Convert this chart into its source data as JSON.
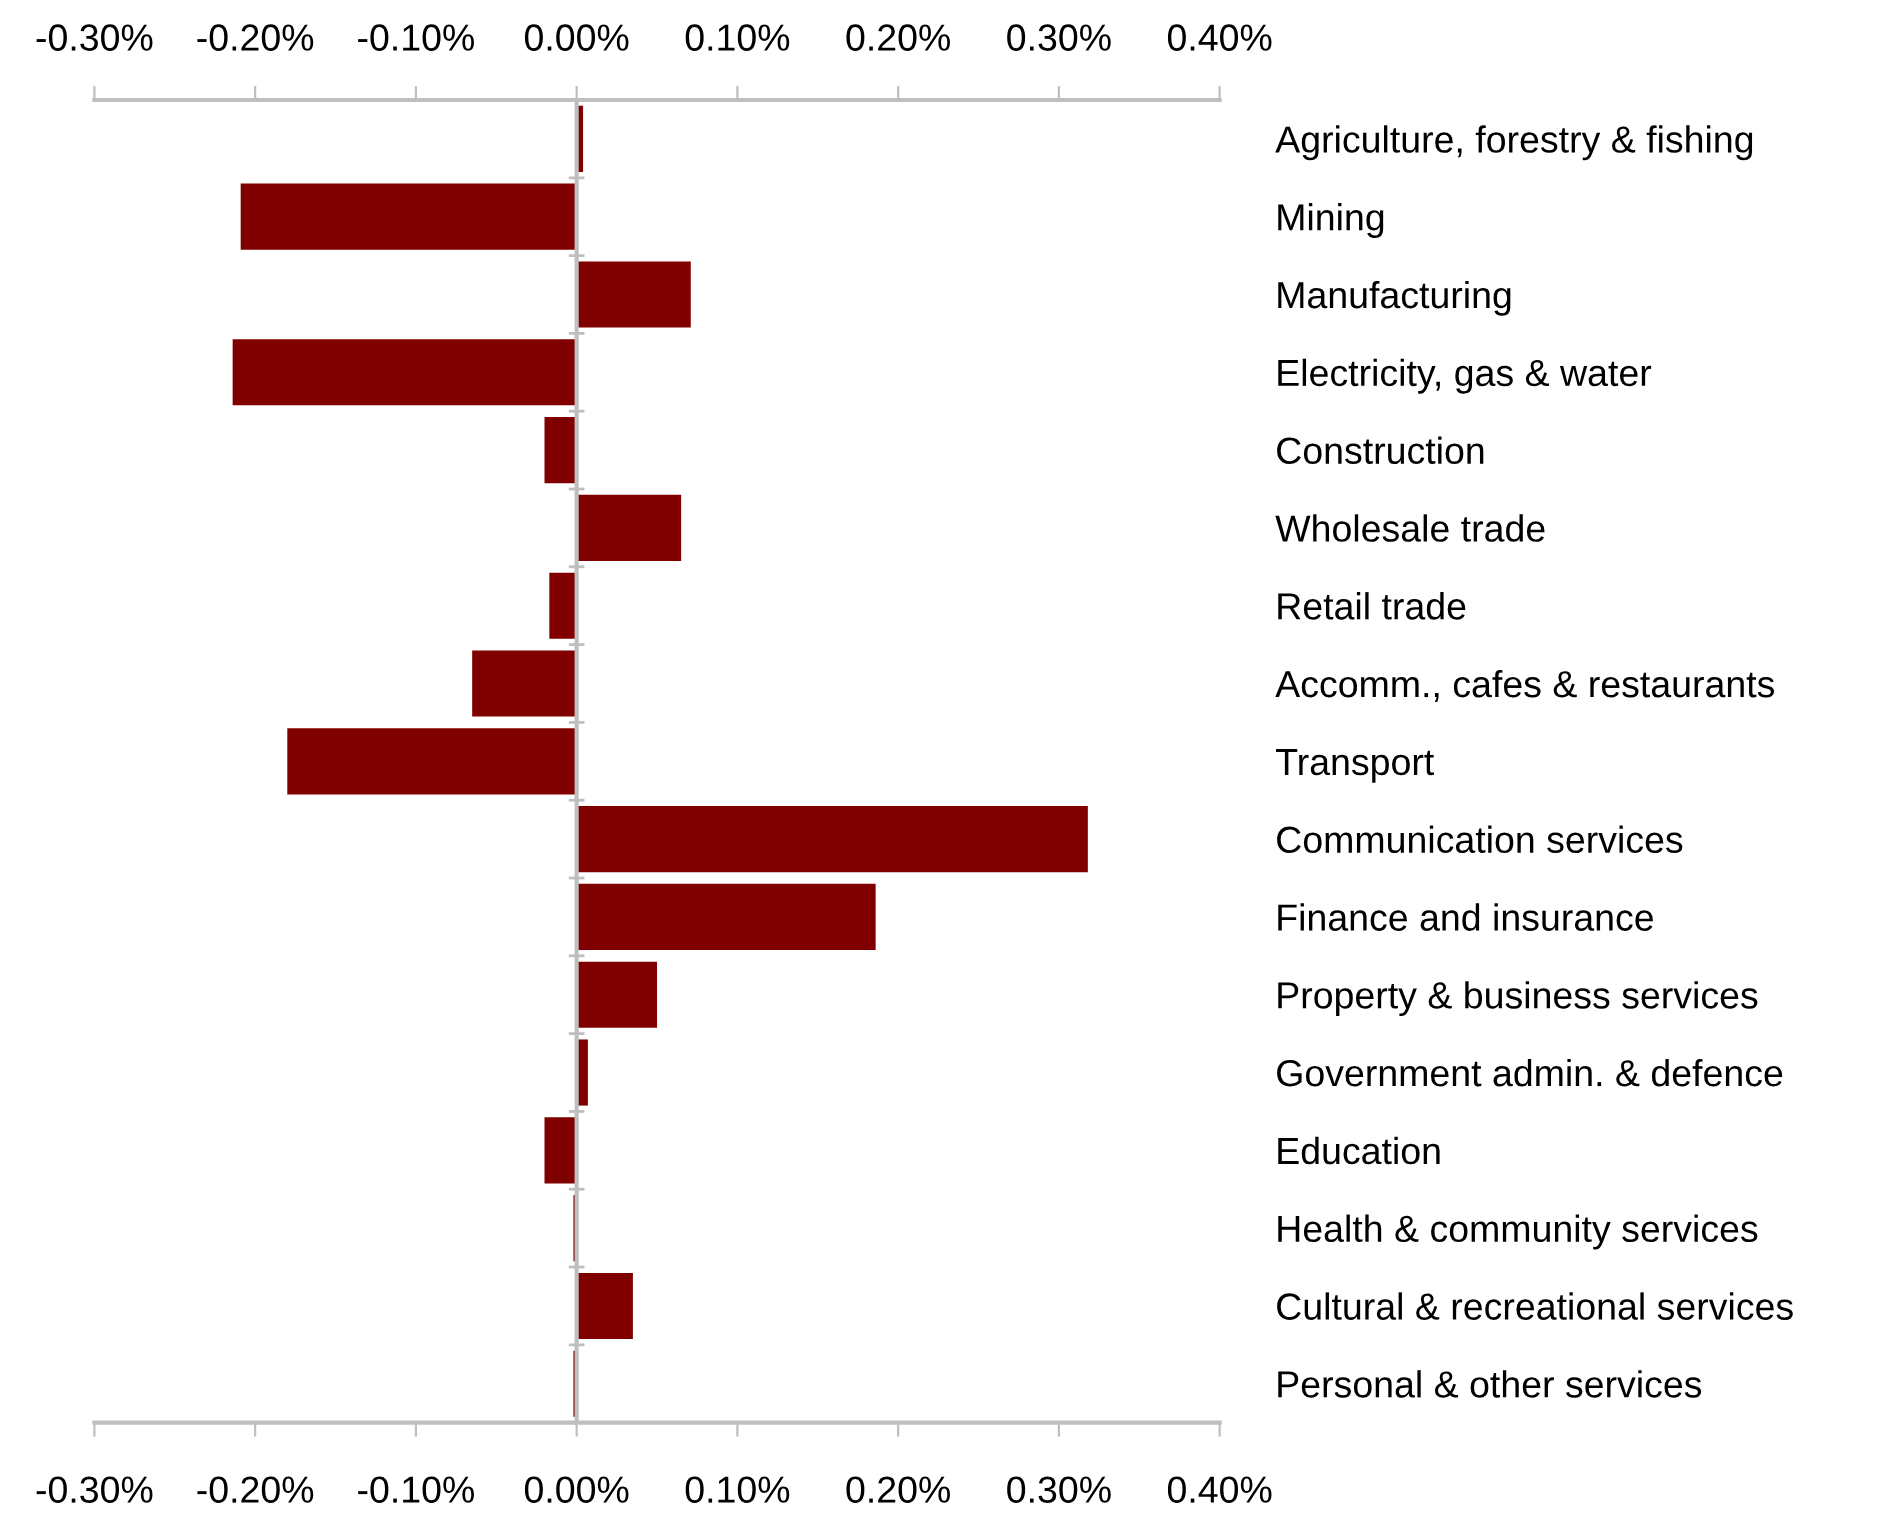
{
  "chart_data": {
    "type": "bar",
    "orientation": "horizontal",
    "categories": [
      "Agriculture, forestry & fishing",
      "Mining",
      "Manufacturing",
      "Electricity, gas & water",
      "Construction",
      "Wholesale trade",
      "Retail trade",
      "Accomm., cafes & restaurants",
      "Transport",
      "Communication services",
      "Finance and insurance",
      "Property & business services",
      "Government admin. & defence",
      "Education",
      "Health & community services",
      "Cultural & recreational services",
      "Personal & other services"
    ],
    "series": [
      {
        "color": "#800000",
        "values": [
          0.004,
          -0.209,
          0.071,
          -0.214,
          -0.02,
          0.065,
          -0.017,
          -0.065,
          -0.18,
          0.318,
          0.186,
          0.05,
          0.007,
          -0.02,
          -0.002,
          0.035,
          -0.002
        ]
      }
    ],
    "xlim": [
      -0.3,
      0.4
    ],
    "xticks": [
      {
        "value": -0.3,
        "label": "-0.30%"
      },
      {
        "value": -0.2,
        "label": "-0.20%"
      },
      {
        "value": -0.1,
        "label": "-0.10%"
      },
      {
        "value": 0,
        "label": "0.00%"
      },
      {
        "value": 0.1,
        "label": "0.10%"
      },
      {
        "value": 0.2,
        "label": "0.20%"
      },
      {
        "value": 0.3,
        "label": "0.30%"
      },
      {
        "value": 0.4,
        "label": "0.40%"
      }
    ],
    "x2lim": [
      -0.3,
      0.4
    ],
    "x2ticks": [
      {
        "value": -0.3,
        "label": "-0.30%"
      },
      {
        "value": -0.2,
        "label": "-0.20%"
      },
      {
        "value": -0.1,
        "label": "-0.10%"
      },
      {
        "value": 0,
        "label": "0.00%"
      },
      {
        "value": 0.1,
        "label": "0.10%"
      },
      {
        "value": 0.2,
        "label": "0.20%"
      },
      {
        "value": 0.3,
        "label": "0.30%"
      },
      {
        "value": 0.4,
        "label": "0.40%"
      }
    ],
    "legend": false
  }
}
